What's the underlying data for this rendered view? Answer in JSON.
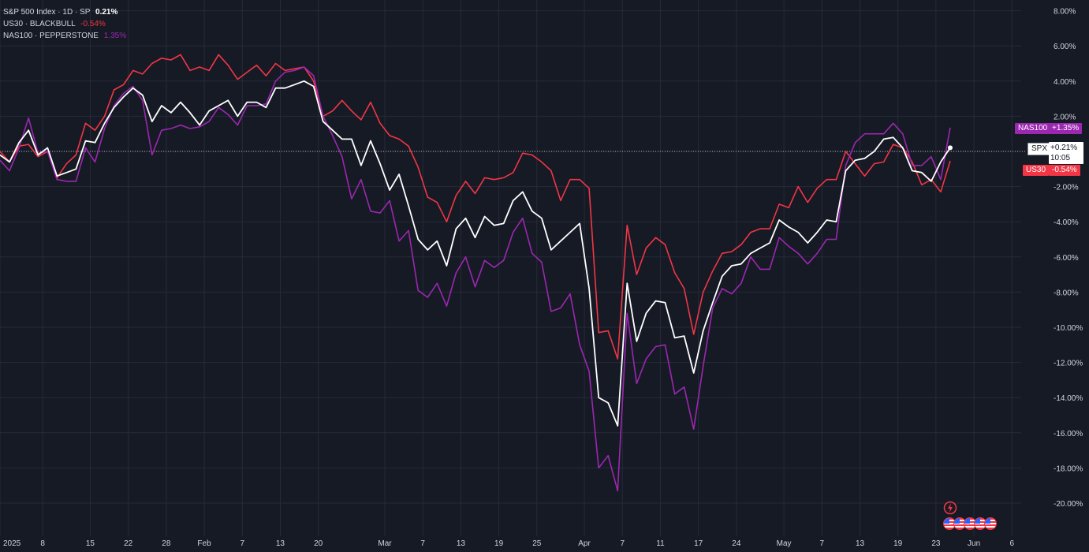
{
  "legend": {
    "spx": {
      "name": "S&P 500 Index · 1D · SP",
      "change": "0.21%"
    },
    "us30": {
      "name": "US30 · BLACKBULL",
      "change": "-0.54%"
    },
    "nas": {
      "name": "NAS100 · PEPPERSTONE",
      "change": "1.35%"
    }
  },
  "price_tags": {
    "nas_name": "NAS100",
    "nas_value": "+1.35%",
    "spx_name": "SPX",
    "spx_value": "+0.21%",
    "spx_countdown": "10:05",
    "us30_name": "US30",
    "us30_value": "-0.54%"
  },
  "icons": {
    "alert": "lightning-icon",
    "events": "us-flag-icons"
  },
  "colors": {
    "background": "#161a25",
    "spx": "#ffffff",
    "us30": "#f23645",
    "nas": "#9c27b0",
    "grid": "#262b38",
    "text": "#d1d4dc"
  },
  "chart_data": {
    "type": "line",
    "grid": true,
    "ylim": [
      -20,
      8
    ],
    "y_ticks": [
      "8.00%",
      "6.00%",
      "4.00%",
      "2.00%",
      "-2.00%",
      "-4.00%",
      "-6.00%",
      "-8.00%",
      "-10.00%",
      "-12.00%",
      "-14.00%",
      "-16.00%",
      "-18.00%",
      "-20.00%"
    ],
    "y_tick_values": [
      8,
      6,
      4,
      2,
      -2,
      -4,
      -6,
      -8,
      -10,
      -12,
      -14,
      -16,
      -18,
      -20
    ],
    "x_ticks": [
      {
        "label": "2025",
        "idx": 0
      },
      {
        "label": "8",
        "idx": 4
      },
      {
        "label": "15",
        "idx": 9
      },
      {
        "label": "22",
        "idx": 13
      },
      {
        "label": "28",
        "idx": 17
      },
      {
        "label": "Feb",
        "idx": 21
      },
      {
        "label": "7",
        "idx": 25
      },
      {
        "label": "13",
        "idx": 29
      },
      {
        "label": "20",
        "idx": 33
      },
      {
        "label": "Mar",
        "idx": 40
      },
      {
        "label": "7",
        "idx": 44
      },
      {
        "label": "13",
        "idx": 48
      },
      {
        "label": "19",
        "idx": 52
      },
      {
        "label": "25",
        "idx": 56
      },
      {
        "label": "Apr",
        "idx": 61
      },
      {
        "label": "7",
        "idx": 65
      },
      {
        "label": "11",
        "idx": 69
      },
      {
        "label": "17",
        "idx": 73
      },
      {
        "label": "24",
        "idx": 77
      },
      {
        "label": "May",
        "idx": 82
      },
      {
        "label": "7",
        "idx": 86
      },
      {
        "label": "13",
        "idx": 90
      },
      {
        "label": "19",
        "idx": 94
      },
      {
        "label": "23",
        "idx": 98
      },
      {
        "label": "Jun",
        "idx": 102
      },
      {
        "label": "6",
        "idx": 106
      }
    ],
    "x_range": [
      0,
      108
    ],
    "baseline": 0,
    "series": [
      {
        "name": "US30",
        "values": [
          0.0,
          -0.6,
          0.3,
          0.4,
          -0.3,
          0.0,
          -1.5,
          -0.7,
          -0.2,
          1.6,
          1.2,
          2.0,
          3.5,
          3.8,
          4.6,
          4.4,
          5.0,
          5.3,
          5.2,
          5.5,
          4.6,
          4.8,
          4.6,
          5.5,
          4.9,
          4.1,
          4.5,
          4.9,
          4.3,
          5.0,
          4.6,
          4.7,
          4.8,
          4.0,
          2.0,
          2.3,
          2.9,
          2.3,
          1.8,
          2.8,
          1.6,
          0.9,
          0.7,
          0.3,
          -0.9,
          -2.6,
          -2.9,
          -4.0,
          -2.5,
          -1.7,
          -2.4,
          -1.5,
          -1.6,
          -1.5,
          -1.2,
          -0.1,
          -0.2,
          -0.6,
          -1.1,
          -2.8,
          -1.6,
          -1.6,
          -2.1,
          -10.3,
          -10.2,
          -11.8,
          -4.2,
          -7.0,
          -5.5,
          -4.9,
          -5.3,
          -6.9,
          -7.8,
          -10.4,
          -8.0,
          -6.8,
          -5.8,
          -5.7,
          -5.3,
          -4.6,
          -4.4,
          -4.4,
          -3.0,
          -3.2,
          -2.0,
          -2.9,
          -2.1,
          -1.6,
          -1.6,
          0.0,
          -0.7,
          -1.4,
          -0.7,
          -0.6,
          0.4,
          0.2,
          -0.6,
          -1.9,
          -1.6,
          -2.3,
          -0.54
        ]
      },
      {
        "name": "NAS100",
        "values": [
          -0.5,
          -1.1,
          0.2,
          1.9,
          -0.1,
          0.0,
          -1.6,
          -1.7,
          -1.7,
          0.2,
          -0.6,
          1.3,
          2.6,
          3.3,
          3.7,
          2.9,
          -0.2,
          1.2,
          1.3,
          1.5,
          1.3,
          1.4,
          1.7,
          2.5,
          2.1,
          1.5,
          2.6,
          2.6,
          2.7,
          4.0,
          4.5,
          4.6,
          4.8,
          4.3,
          2.0,
          0.9,
          -0.3,
          -2.7,
          -1.6,
          -3.4,
          -3.5,
          -2.8,
          -5.1,
          -4.5,
          -7.9,
          -8.3,
          -7.5,
          -8.8,
          -6.9,
          -6.0,
          -7.7,
          -6.2,
          -6.6,
          -6.2,
          -4.6,
          -3.8,
          -5.8,
          -6.3,
          -9.1,
          -8.9,
          -8.1,
          -11.0,
          -12.5,
          -18.0,
          -17.3,
          -19.3,
          -9.2,
          -13.2,
          -11.8,
          -11.1,
          -11.0,
          -13.8,
          -13.4,
          -15.8,
          -12.2,
          -8.9,
          -7.8,
          -8.1,
          -7.5,
          -6.0,
          -6.7,
          -6.7,
          -4.9,
          -5.4,
          -5.8,
          -6.4,
          -5.8,
          -5.0,
          -5.0,
          -0.8,
          0.5,
          1.0,
          1.0,
          1.0,
          1.6,
          1.0,
          -0.8,
          -0.8,
          -0.3,
          -1.6,
          1.35
        ]
      },
      {
        "name": "SPX",
        "values": [
          -0.2,
          -0.6,
          0.5,
          1.2,
          -0.2,
          0.2,
          -1.4,
          -1.2,
          -1.0,
          0.6,
          0.5,
          1.6,
          2.5,
          3.1,
          3.6,
          3.2,
          1.7,
          2.6,
          2.2,
          2.8,
          2.2,
          1.5,
          2.3,
          2.6,
          2.9,
          2.0,
          2.8,
          2.8,
          2.5,
          3.6,
          3.6,
          3.8,
          4.0,
          3.7,
          1.7,
          1.2,
          0.7,
          0.7,
          -0.8,
          0.6,
          -0.7,
          -2.2,
          -1.3,
          -3.1,
          -5.0,
          -5.6,
          -5.1,
          -6.5,
          -4.4,
          -3.8,
          -4.9,
          -3.7,
          -4.2,
          -4.1,
          -2.8,
          -2.3,
          -3.4,
          -3.8,
          -5.6,
          -5.1,
          -4.6,
          -4.1,
          -7.8,
          -14.0,
          -14.3,
          -15.6,
          -7.5,
          -10.8,
          -9.2,
          -8.5,
          -8.6,
          -10.6,
          -10.5,
          -12.6,
          -10.2,
          -8.6,
          -7.1,
          -6.5,
          -6.4,
          -5.8,
          -5.5,
          -5.2,
          -3.9,
          -4.3,
          -4.6,
          -5.2,
          -4.6,
          -3.9,
          -4.0,
          -1.1,
          -0.5,
          -0.4,
          0.0,
          0.7,
          0.8,
          0.2,
          -1.1,
          -1.2,
          -1.7,
          -0.6,
          0.21
        ]
      }
    ]
  }
}
